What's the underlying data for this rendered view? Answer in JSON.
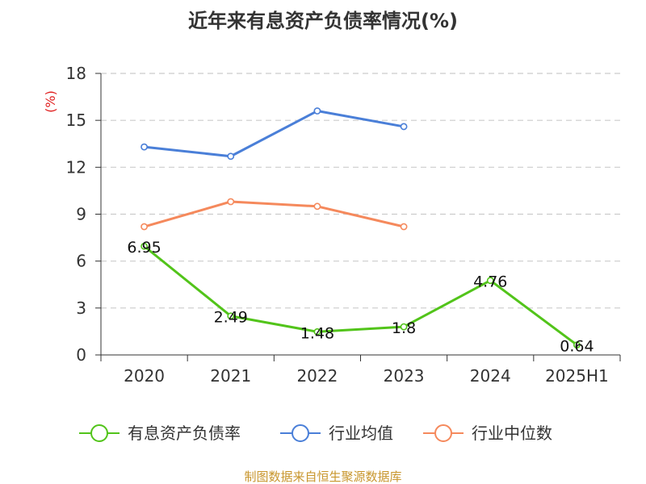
{
  "chart_data": {
    "type": "line",
    "title": "近年来有息资产负债率情况(%)",
    "ylabel": "(%)",
    "xlabel": "",
    "categories": [
      "2020",
      "2021",
      "2022",
      "2023",
      "2024",
      "2025H1"
    ],
    "ylim": [
      0,
      18
    ],
    "yticks": [
      0,
      3,
      6,
      9,
      12,
      15,
      18
    ],
    "grid": true,
    "legend_position": "bottom",
    "series": [
      {
        "name": "有息资产负债率",
        "color": "#52c41a",
        "values": [
          6.95,
          2.49,
          1.48,
          1.8,
          4.76,
          0.64
        ],
        "data_labels": [
          "6.95",
          "2.49",
          "1.48",
          "1.8",
          "4.76",
          "0.64"
        ]
      },
      {
        "name": "行业均值",
        "color": "#4a7fd8",
        "values": [
          13.3,
          12.7,
          15.6,
          14.6,
          null,
          null
        ]
      },
      {
        "name": "行业中位数",
        "color": "#f5895c",
        "values": [
          8.2,
          9.8,
          9.5,
          8.2,
          null,
          null
        ]
      }
    ]
  },
  "source_text": "制图数据来自恒生聚源数据库",
  "colors": {
    "unit_label": "#e02020",
    "source_text": "#c8962d",
    "grid": "#cccccc",
    "axis": "#333333"
  }
}
